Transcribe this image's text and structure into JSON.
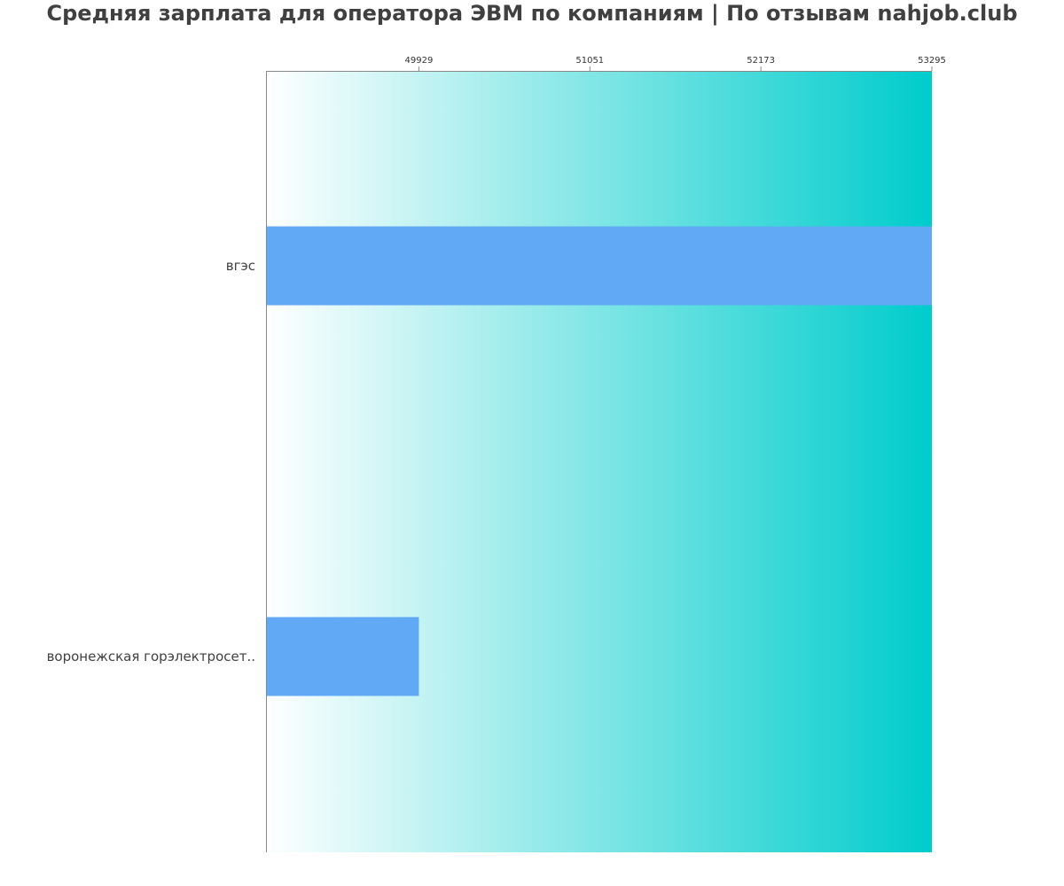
{
  "title": "Средняя зарплата для оператора ЭВМ по компаниям  | По отзывам nahjob.club",
  "colors": {
    "bar": "#61a8f5",
    "gradient_start": "#ffffff",
    "gradient_end": "#00cccc",
    "axis": "#888888",
    "text": "#404040"
  },
  "chart_data": {
    "type": "bar",
    "orientation": "horizontal",
    "title": "Средняя зарплата для оператора ЭВМ по компаниям  | По отзывам nahjob.club",
    "categories": [
      "вгэс",
      "воронежская горэлектросет.."
    ],
    "values": [
      53295,
      49929
    ],
    "x_ticks": [
      49929,
      51051,
      52173,
      53295
    ],
    "xlim": [
      48926,
      53295
    ],
    "xaxis_position": "top",
    "xlabel": "",
    "ylabel": "",
    "grid": false,
    "legend": "none"
  }
}
